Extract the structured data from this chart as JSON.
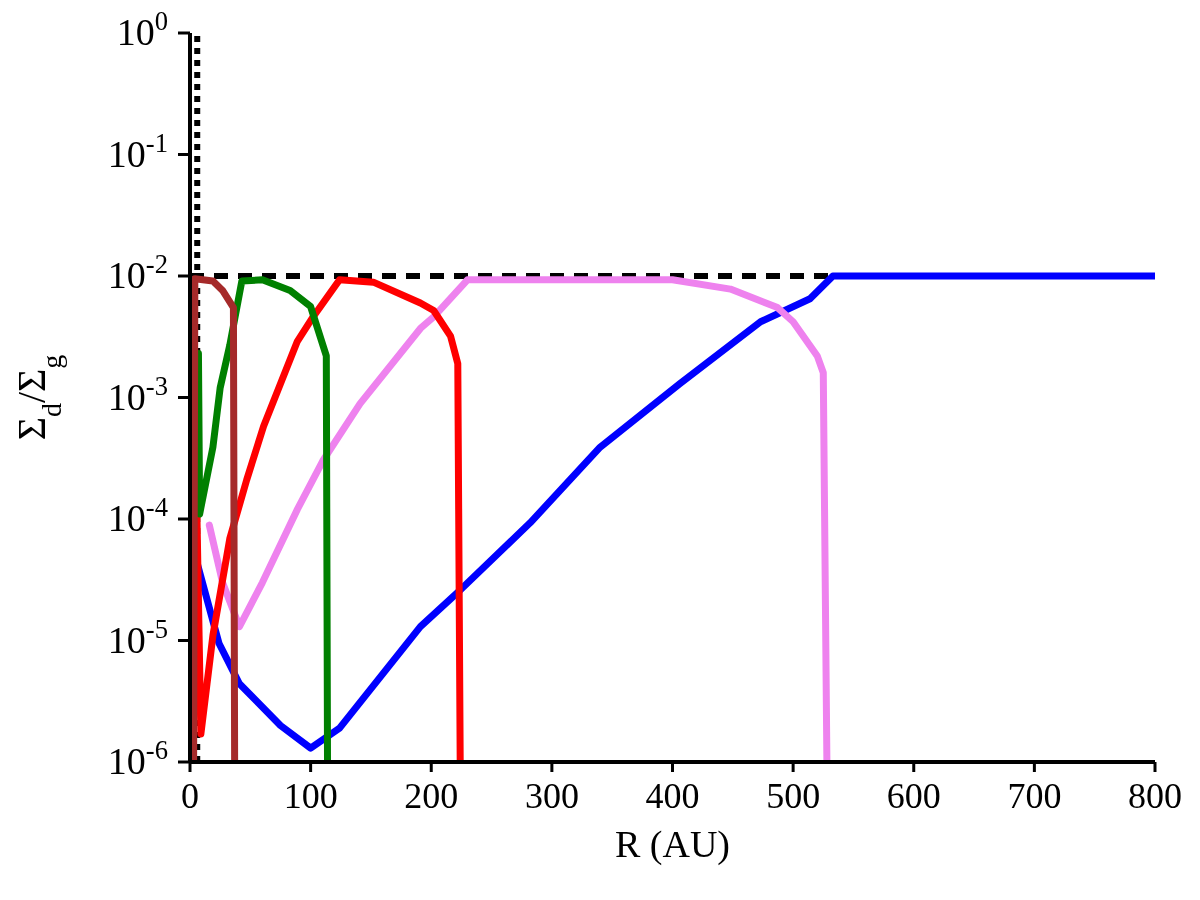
{
  "chart_data": {
    "type": "line",
    "xlabel": "R (AU)",
    "ylabel": "Σ$_{d}$/Σ$_{g}$",
    "log": "y",
    "xlim": [
      0,
      800
    ],
    "xticks": [
      0,
      100,
      200,
      300,
      400,
      500,
      600,
      700,
      800
    ],
    "ylim": [
      1e-06,
      1
    ],
    "yticks": [
      {
        "value": 1e-06,
        "label": "10$^{-6}$"
      },
      {
        "value": 1e-05,
        "label": "10$^{-5}$"
      },
      {
        "value": 0.0001,
        "label": "10$^{-4}$"
      },
      {
        "value": 0.001,
        "label": "10$^{-3}$"
      },
      {
        "value": 0.01,
        "label": "10$^{-2}$"
      },
      {
        "value": 0.1,
        "label": "10$^{-1}$"
      },
      {
        "value": 1,
        "label": "10$^{0}$"
      }
    ],
    "grid": false,
    "legend": false,
    "marker": "none",
    "line_style": "solid",
    "series": [
      {
        "color": "#0000ff",
        "x": [
          5.5,
          24,
          41,
          75,
          100,
          124,
          191,
          224,
          282,
          340,
          406,
          473,
          514,
          533,
          800
        ],
        "values": [
          4.5e-05,
          9.5e-06,
          4.4e-06,
          2e-06,
          1.3e-06,
          1.9e-06,
          1.3e-05,
          2.6e-05,
          9.3e-05,
          0.00039,
          0.0013,
          0.0042,
          0.0065,
          0.01,
          0.01
        ]
      },
      {
        "color": "#ee82ee",
        "x": [
          16,
          27,
          41,
          60,
          89,
          110,
          141,
          191,
          202,
          230,
          400,
          448,
          487,
          500,
          520,
          525,
          528
        ],
        "values": [
          8.9e-05,
          3e-05,
          1.3e-05,
          3e-05,
          0.00012,
          0.0003,
          0.00089,
          0.0037,
          0.0046,
          0.0093,
          0.0093,
          0.0078,
          0.0055,
          0.0042,
          0.0022,
          0.0016,
          1e-06
        ]
      },
      {
        "color": "#ff0000",
        "x": [
          4,
          9,
          19,
          33,
          47,
          61,
          89,
          102,
          124,
          152,
          191,
          202,
          216,
          222,
          224
        ],
        "values": [
          0.001,
          1.7e-06,
          1.1e-05,
          6.9e-05,
          0.00021,
          0.00058,
          0.0029,
          0.0046,
          0.0093,
          0.0089,
          0.006,
          0.0052,
          0.0032,
          0.0019,
          1e-06
        ]
      },
      {
        "color": "#008000",
        "x": [
          7,
          8,
          19,
          25,
          33,
          43,
          60,
          83,
          100,
          113,
          114
        ],
        "values": [
          0.0023,
          0.00011,
          0.00039,
          0.0012,
          0.0027,
          0.0091,
          0.0093,
          0.0076,
          0.0056,
          0.0022,
          1e-06
        ]
      },
      {
        "color": "#a52a2a",
        "x": [
          3,
          4,
          19,
          27,
          36,
          37
        ],
        "values": [
          1e-06,
          0.0095,
          0.0091,
          0.0076,
          0.0055,
          1e-06
        ]
      }
    ],
    "ref_lines": [
      {
        "axis": "y",
        "value": 0.01,
        "color": "#000000",
        "line_style": "dashed"
      },
      {
        "axis": "x",
        "value": 6,
        "color": "#000000",
        "line_style": "dotted"
      }
    ]
  }
}
